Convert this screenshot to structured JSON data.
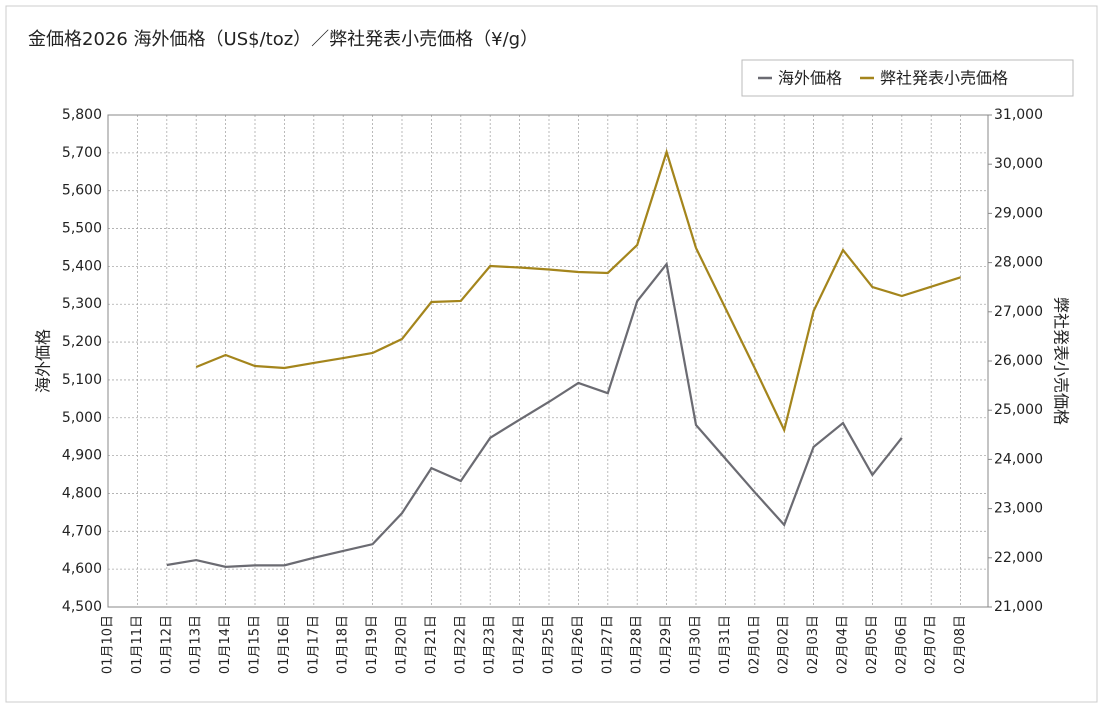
{
  "chart_data": {
    "type": "line",
    "title": "金価格2026 海外価格（US$/toz）／弊社発表小売価格（¥/g）",
    "y_label": "海外価格",
    "y2_label": "弊社発表小売価格",
    "categories": [
      "01月10日",
      "01月11日",
      "01月12日",
      "01月13日",
      "01月14日",
      "01月15日",
      "01月16日",
      "01月17日",
      "01月18日",
      "01月19日",
      "01月20日",
      "01月21日",
      "01月22日",
      "01月23日",
      "01月24日",
      "01月25日",
      "01月26日",
      "01月27日",
      "01月28日",
      "01月29日",
      "01月30日",
      "01月31日",
      "02月01日",
      "02月02日",
      "02月03日",
      "02月04日",
      "02月05日",
      "02月06日",
      "02月07日",
      "02月08日"
    ],
    "series": [
      {
        "name": "海外価格",
        "color": "#6b6b72",
        "values": [
          null,
          null,
          4611,
          4624,
          4606,
          4610,
          4610,
          4630,
          4648,
          4666,
          4748,
          4867,
          4833,
          4947,
          4995,
          5042,
          5092,
          5065,
          5308,
          5406,
          4981,
          4892,
          4803,
          4717,
          4923,
          4986,
          4849,
          4947,
          null,
          null
        ]
      },
      {
        "name": "弊社発表小売価格",
        "color": "#a4851c",
        "axis": "y2",
        "values": [
          null,
          null,
          null,
          25878,
          26122,
          25898,
          25858,
          25960,
          26060,
          26163,
          26447,
          27199,
          27220,
          27931,
          27900,
          27860,
          27809,
          27789,
          28358,
          30248,
          28297,
          27075,
          25852,
          24598,
          27016,
          28256,
          27504,
          27321,
          27510,
          27700
        ]
      }
    ],
    "ylim": [
      4500,
      5800
    ],
    "yticks": [
      {
        "value": 4500,
        "label": "4,500"
      },
      {
        "value": 4600,
        "label": "4,600"
      },
      {
        "value": 4700,
        "label": "4,700"
      },
      {
        "value": 4800,
        "label": "4,800"
      },
      {
        "value": 4900,
        "label": "4,900"
      },
      {
        "value": 5000,
        "label": "5,000"
      },
      {
        "value": 5100,
        "label": "5,100"
      },
      {
        "value": 5200,
        "label": "5,200"
      },
      {
        "value": 5300,
        "label": "5,300"
      },
      {
        "value": 5400,
        "label": "5,400"
      },
      {
        "value": 5500,
        "label": "5,500"
      },
      {
        "value": 5600,
        "label": "5,600"
      },
      {
        "value": 5700,
        "label": "5,700"
      },
      {
        "value": 5800,
        "label": "5,800"
      }
    ],
    "y2lim": [
      21000,
      31000
    ],
    "y2ticks": [
      {
        "value": 21000,
        "label": "21,000"
      },
      {
        "value": 22000,
        "label": "22,000"
      },
      {
        "value": 23000,
        "label": "23,000"
      },
      {
        "value": 24000,
        "label": "24,000"
      },
      {
        "value": 25000,
        "label": "25,000"
      },
      {
        "value": 26000,
        "label": "26,000"
      },
      {
        "value": 27000,
        "label": "27,000"
      },
      {
        "value": 28000,
        "label": "28,000"
      },
      {
        "value": 29000,
        "label": "29,000"
      },
      {
        "value": 30000,
        "label": "30,000"
      },
      {
        "value": 31000,
        "label": "31,000"
      }
    ],
    "grid": true,
    "legend": "top-right"
  }
}
